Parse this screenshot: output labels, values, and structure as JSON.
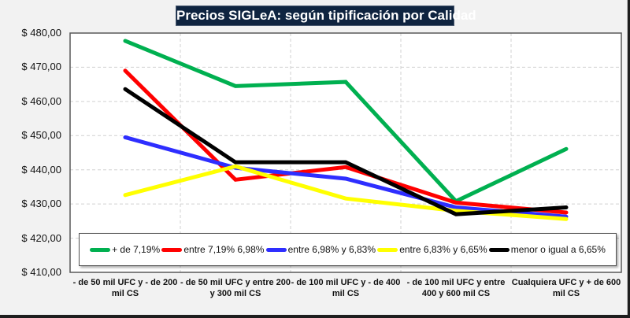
{
  "chart_data": {
    "type": "line",
    "title": "Precios SIGLeA: según tipificación por Calidad",
    "xlabel": "",
    "ylabel": "",
    "ylim": [
      410,
      480
    ],
    "yticks": [
      410,
      420,
      430,
      440,
      450,
      460,
      470,
      480
    ],
    "ytick_labels": [
      "$ 410,00",
      "$ 420,00",
      "$ 430,00",
      "$ 440,00",
      "$ 450,00",
      "$ 460,00",
      "$ 470,00",
      "$ 480,00"
    ],
    "grid": true,
    "legend_position": "bottom-inside",
    "categories": [
      "- de 50 mil UFC y - de 200 mil CS",
      "- de 50 mil UFC y entre  200 y 300 mil CS",
      "- de 100 mil UFC y - de 400 mil CS",
      "- de 100 mil UFC y entre  400 y 600 mil CS",
      "Cualquiera UFC y + de 600 mil CS"
    ],
    "series": [
      {
        "name": "+ de 7,19%",
        "color": "#00b050",
        "values": [
          477.7,
          464.5,
          465.7,
          430.8,
          446.1
        ]
      },
      {
        "name": "entre 7,19% 6,98%",
        "color": "#ff0000",
        "values": [
          469.0,
          437.1,
          440.8,
          430.4,
          427.5
        ]
      },
      {
        "name": "entre 6,98% y 6,83%",
        "color": "#2e2eff",
        "values": [
          449.5,
          440.6,
          437.4,
          429.0,
          426.3
        ]
      },
      {
        "name": "entre 6,83% y 6,65%",
        "color": "#ffff00",
        "values": [
          432.6,
          441.0,
          431.6,
          428.0,
          425.6
        ]
      },
      {
        "name": "menor o igual a 6,65%",
        "color": "#000000",
        "values": [
          463.6,
          442.2,
          442.2,
          427.0,
          429.0
        ]
      }
    ]
  }
}
